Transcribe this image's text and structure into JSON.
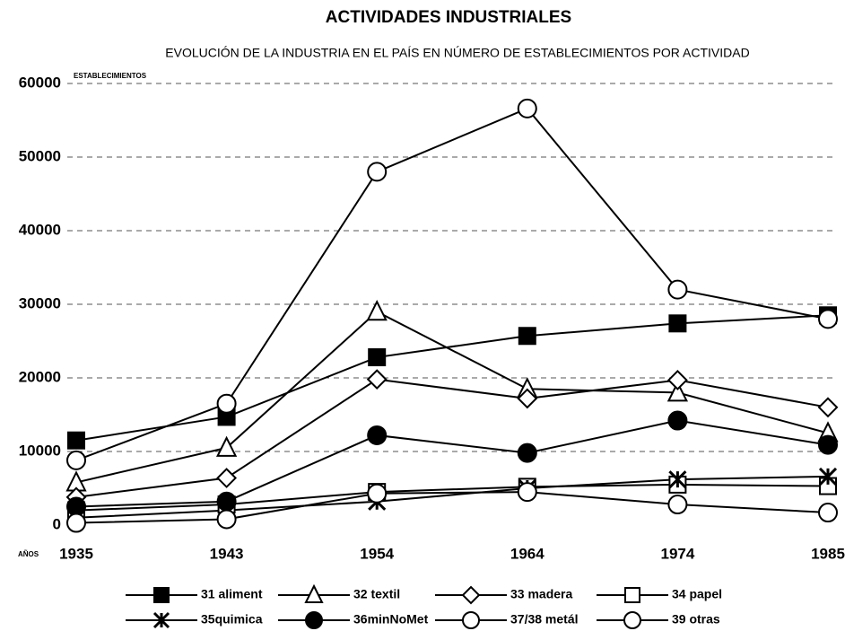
{
  "chart_data": {
    "type": "line",
    "title": "ACTIVIDADES INDUSTRIALES",
    "subtitle": "EVOLUCIÓN DE LA INDUSTRIA EN EL PAÍS EN NÚMERO DE ESTABLECIMIENTOS POR ACTIVIDAD",
    "y_label": "ESTABLECIMIENTOS",
    "x_label": "AÑOS",
    "categories": [
      "1935",
      "1943",
      "1954",
      "1964",
      "1974",
      "1985"
    ],
    "ylim": [
      0,
      60000
    ],
    "yticks": [
      0,
      10000,
      20000,
      30000,
      40000,
      50000,
      60000
    ],
    "grid": true,
    "legend": "bottom",
    "series": [
      {
        "name": "31 aliment",
        "color": "#000000",
        "marker": "square",
        "filled": true,
        "values": [
          11500,
          14700,
          22800,
          25700,
          27400,
          28500
        ]
      },
      {
        "name": "32 textil",
        "color": "#000000",
        "marker": "triangle",
        "filled": false,
        "values": [
          5800,
          10500,
          29000,
          18500,
          18000,
          12500
        ]
      },
      {
        "name": "33 madera",
        "color": "#000000",
        "marker": "diamond",
        "filled": false,
        "values": [
          3800,
          6400,
          19800,
          17200,
          19700,
          16000
        ]
      },
      {
        "name": "34 papel",
        "color": "#000000",
        "marker": "square",
        "filled": false,
        "values": [
          2000,
          2800,
          4500,
          5200,
          5500,
          5300
        ]
      },
      {
        "name": "35quimica",
        "color": "#000000",
        "marker": "x",
        "filled": false,
        "values": [
          1000,
          2000,
          3200,
          5000,
          6200,
          6600
        ]
      },
      {
        "name": "36minNoMet",
        "color": "#000000",
        "marker": "circle",
        "filled": true,
        "values": [
          2500,
          3200,
          12200,
          9800,
          14200,
          10900
        ]
      },
      {
        "name": "37/38 metál",
        "color": "#000000",
        "marker": "circle",
        "filled": false,
        "values": [
          8800,
          16500,
          48000,
          56600,
          32000,
          28000
        ]
      },
      {
        "name": "39 otras",
        "color": "#000000",
        "marker": "circle",
        "filled": false,
        "values": [
          300,
          800,
          4300,
          4500,
          2800,
          1700
        ]
      }
    ]
  }
}
